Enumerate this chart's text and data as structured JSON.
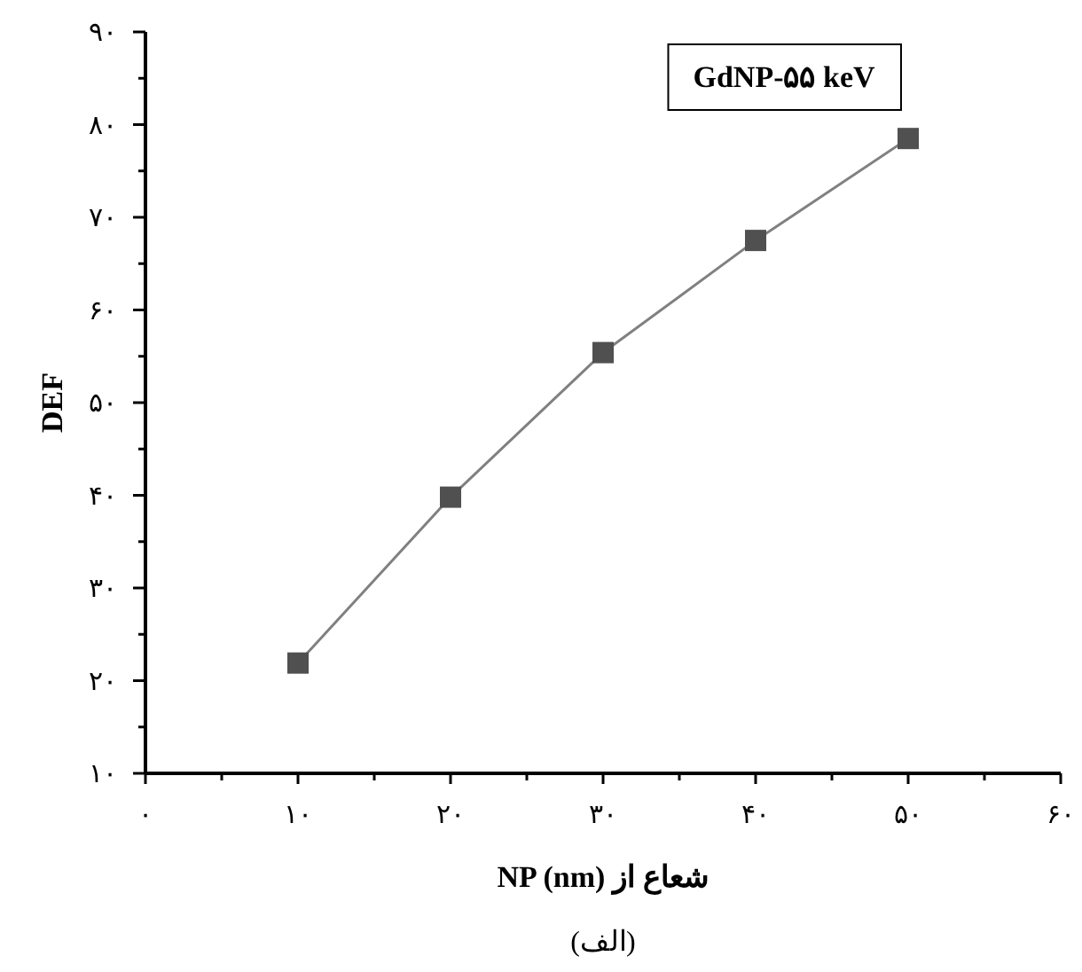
{
  "chart_data": {
    "type": "line",
    "xlabel": "شعاع از NP (nm)",
    "ylabel": "DEF",
    "x": [
      10,
      20,
      30,
      40,
      50
    ],
    "series": [
      {
        "color": "#505050",
        "values": [
          21.9,
          39.8,
          55.4,
          67.5,
          78.5
        ]
      }
    ],
    "marker": "square",
    "line_style": "solid",
    "grid": false,
    "xlim": [
      0,
      60
    ],
    "ylim": [
      10,
      90
    ],
    "xticks": [
      {
        "value": 0,
        "label": "۰"
      },
      {
        "value": 10,
        "label": "۱۰"
      },
      {
        "value": 20,
        "label": "۲۰"
      },
      {
        "value": 30,
        "label": "۳۰"
      },
      {
        "value": 40,
        "label": "۴۰"
      },
      {
        "value": 50,
        "label": "۵۰"
      },
      {
        "value": 60,
        "label": "۶۰"
      }
    ],
    "yticks": [
      {
        "value": 10,
        "label": "۱۰"
      },
      {
        "value": 20,
        "label": "۲۰"
      },
      {
        "value": 30,
        "label": "۳۰"
      },
      {
        "value": 40,
        "label": "۴۰"
      },
      {
        "value": 50,
        "label": "۵۰"
      },
      {
        "value": 60,
        "label": "۶۰"
      },
      {
        "value": 70,
        "label": "۷۰"
      },
      {
        "value": 80,
        "label": "۸۰"
      },
      {
        "value": 90,
        "label": "۹۰"
      }
    ],
    "annotations": [
      "GdNP-۵۵ keV",
      "(الف)"
    ]
  }
}
